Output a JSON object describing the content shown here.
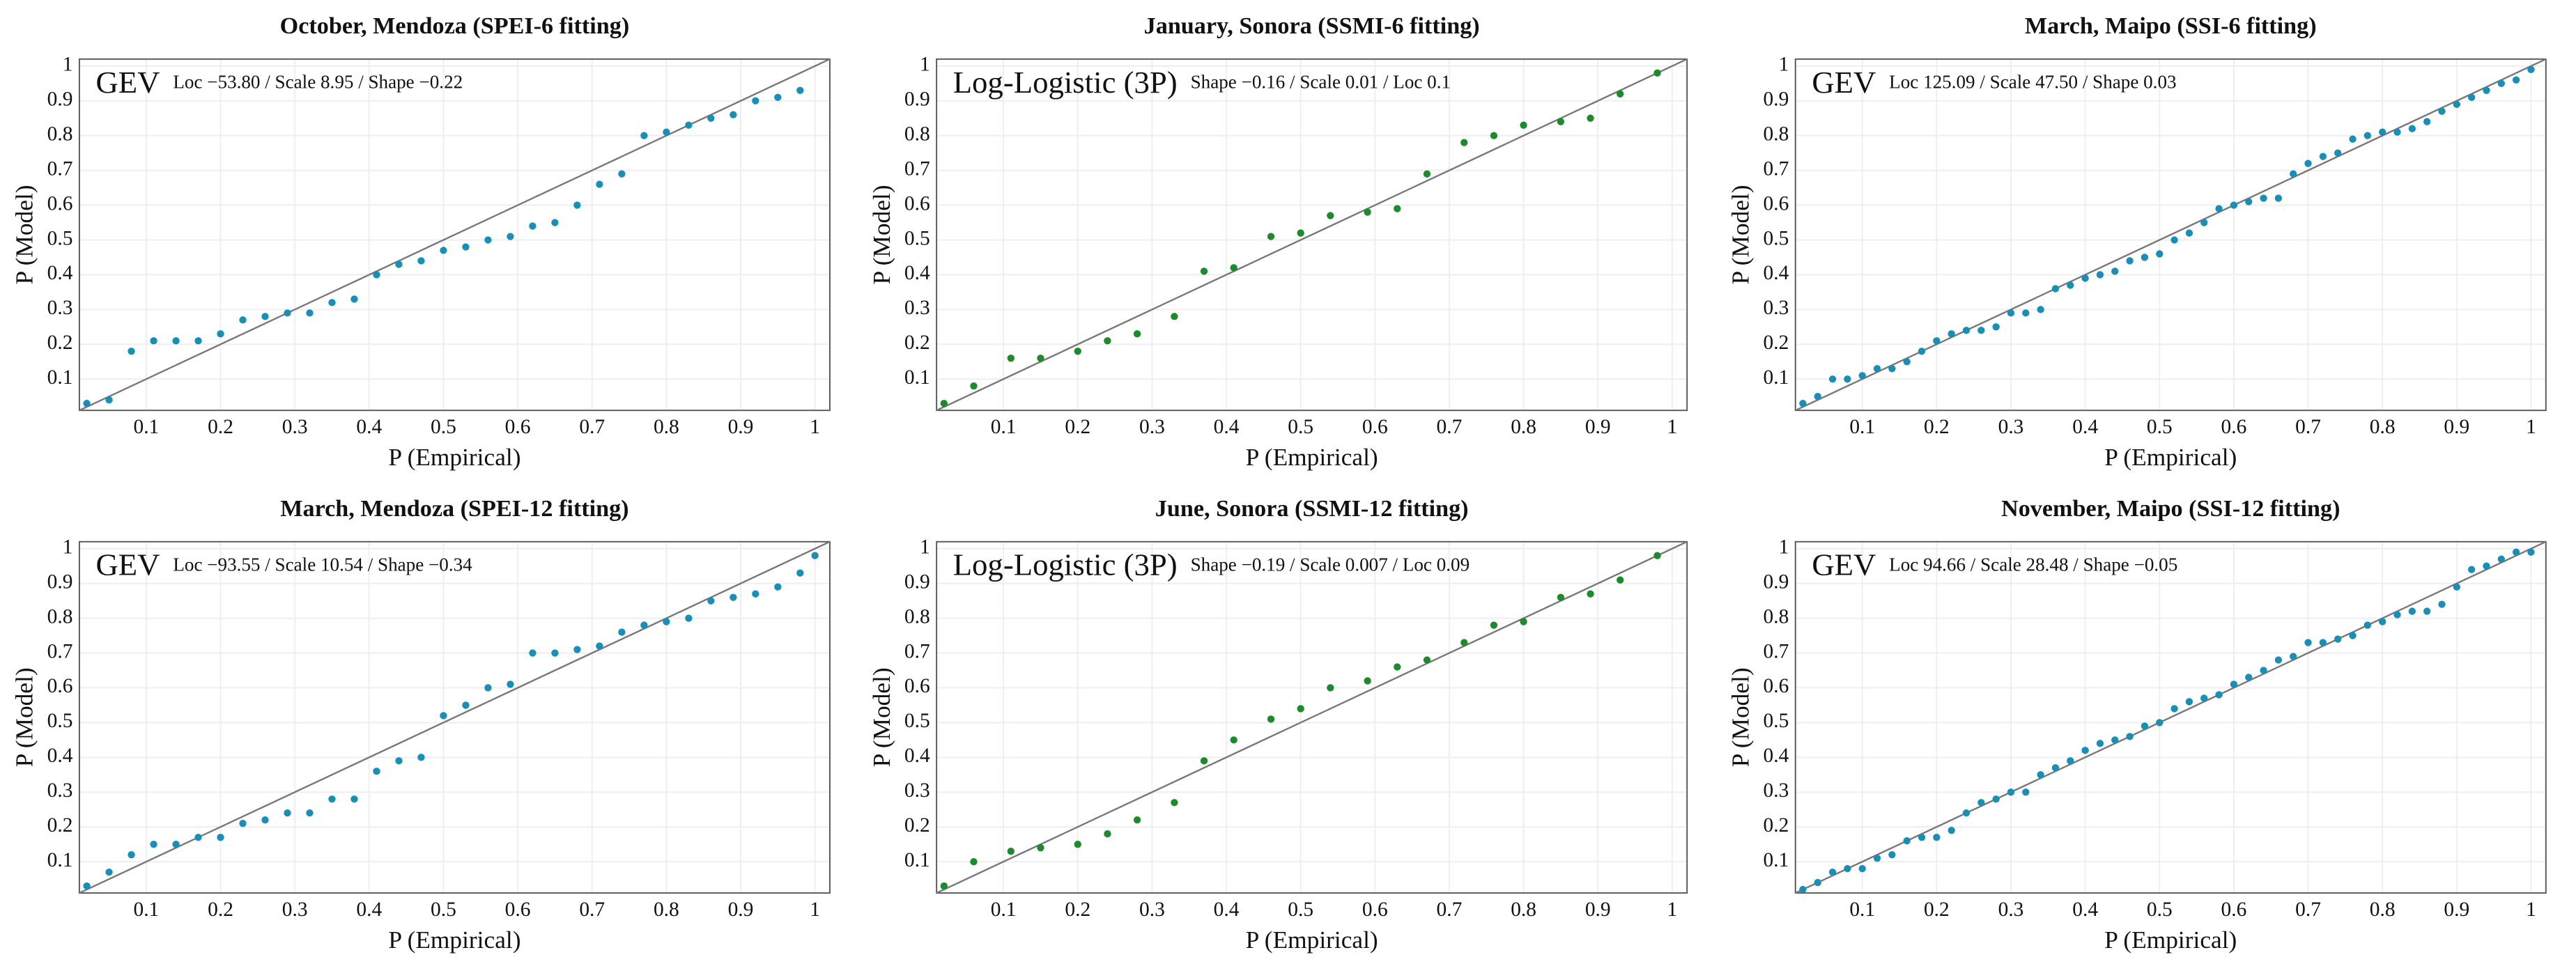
{
  "chart_data": [
    {
      "type": "scatter",
      "title": "October, Mendoza (SPEI-6 fitting)",
      "distribution": "GEV",
      "parameters": "Loc −53.80 / Scale 8.95 / Shape −0.22",
      "xlabel": "P (Empirical)",
      "ylabel": "P (Model)",
      "color": "#1a8fb5",
      "grid": true,
      "xlim": [
        0.01,
        1.02
      ],
      "ylim": [
        0.01,
        1.02
      ],
      "xticks": [
        0.1,
        0.2,
        0.3,
        0.4,
        0.5,
        0.6,
        0.7,
        0.8,
        0.9,
        1
      ],
      "yticks": [
        0.1,
        0.2,
        0.3,
        0.4,
        0.5,
        0.6,
        0.7,
        0.8,
        0.9,
        1
      ],
      "x": [
        0.02,
        0.05,
        0.08,
        0.11,
        0.14,
        0.17,
        0.2,
        0.23,
        0.26,
        0.29,
        0.32,
        0.35,
        0.38,
        0.41,
        0.44,
        0.47,
        0.5,
        0.53,
        0.56,
        0.59,
        0.62,
        0.65,
        0.68,
        0.71,
        0.74,
        0.77,
        0.8,
        0.83,
        0.86,
        0.89,
        0.92,
        0.95,
        0.98
      ],
      "values": [
        0.03,
        0.04,
        0.18,
        0.21,
        0.21,
        0.21,
        0.23,
        0.27,
        0.28,
        0.29,
        0.29,
        0.32,
        0.33,
        0.4,
        0.43,
        0.44,
        0.47,
        0.48,
        0.5,
        0.51,
        0.54,
        0.55,
        0.6,
        0.66,
        0.69,
        0.8,
        0.81,
        0.83,
        0.85,
        0.86,
        0.9,
        0.91,
        0.93
      ]
    },
    {
      "type": "scatter",
      "title": "January, Sonora (SSMI-6 fitting)",
      "distribution": "Log-Logistic (3P)",
      "parameters": "Shape −0.16 / Scale 0.01 / Loc 0.1",
      "xlabel": "P (Empirical)",
      "ylabel": "P (Model)",
      "color": "#1e8a2e",
      "grid": true,
      "xlim": [
        0.01,
        1.02
      ],
      "ylim": [
        0.01,
        1.02
      ],
      "xticks": [
        0.1,
        0.2,
        0.3,
        0.4,
        0.5,
        0.6,
        0.7,
        0.8,
        0.9,
        1
      ],
      "yticks": [
        0.1,
        0.2,
        0.3,
        0.4,
        0.5,
        0.6,
        0.7,
        0.8,
        0.9,
        1
      ],
      "x": [
        0.02,
        0.06,
        0.11,
        0.15,
        0.2,
        0.24,
        0.28,
        0.33,
        0.37,
        0.41,
        0.46,
        0.5,
        0.54,
        0.59,
        0.63,
        0.67,
        0.72,
        0.76,
        0.8,
        0.85,
        0.89,
        0.93,
        0.98
      ],
      "values": [
        0.03,
        0.08,
        0.16,
        0.16,
        0.18,
        0.21,
        0.23,
        0.28,
        0.41,
        0.42,
        0.51,
        0.52,
        0.57,
        0.58,
        0.59,
        0.69,
        0.78,
        0.8,
        0.83,
        0.84,
        0.85,
        0.92,
        0.98
      ]
    },
    {
      "type": "scatter",
      "title": "March, Maipo (SSI-6 fitting)",
      "distribution": "GEV",
      "parameters": "Loc 125.09 / Scale 47.50 / Shape 0.03",
      "xlabel": "P (Empirical)",
      "ylabel": "P (Model)",
      "color": "#1a8fb5",
      "grid": true,
      "xlim": [
        0.01,
        1.02
      ],
      "ylim": [
        0.01,
        1.02
      ],
      "xticks": [
        0.1,
        0.2,
        0.3,
        0.4,
        0.5,
        0.6,
        0.7,
        0.8,
        0.9,
        1
      ],
      "yticks": [
        0.1,
        0.2,
        0.3,
        0.4,
        0.5,
        0.6,
        0.7,
        0.8,
        0.9,
        1
      ],
      "x": [
        0.02,
        0.04,
        0.06,
        0.08,
        0.1,
        0.12,
        0.14,
        0.16,
        0.18,
        0.2,
        0.22,
        0.24,
        0.26,
        0.28,
        0.3,
        0.32,
        0.34,
        0.36,
        0.38,
        0.4,
        0.42,
        0.44,
        0.46,
        0.48,
        0.5,
        0.52,
        0.54,
        0.56,
        0.58,
        0.6,
        0.62,
        0.64,
        0.66,
        0.68,
        0.7,
        0.72,
        0.74,
        0.76,
        0.78,
        0.8,
        0.82,
        0.84,
        0.86,
        0.88,
        0.9,
        0.92,
        0.94,
        0.96,
        0.98,
        1
      ],
      "values": [
        0.03,
        0.05,
        0.1,
        0.1,
        0.11,
        0.13,
        0.13,
        0.15,
        0.18,
        0.21,
        0.23,
        0.24,
        0.24,
        0.25,
        0.29,
        0.29,
        0.3,
        0.36,
        0.37,
        0.39,
        0.4,
        0.41,
        0.44,
        0.45,
        0.46,
        0.5,
        0.52,
        0.55,
        0.59,
        0.6,
        0.61,
        0.62,
        0.62,
        0.69,
        0.72,
        0.74,
        0.75,
        0.79,
        0.8,
        0.81,
        0.81,
        0.82,
        0.84,
        0.87,
        0.89,
        0.91,
        0.93,
        0.95,
        0.96,
        0.99
      ]
    },
    {
      "type": "scatter",
      "title": "March, Mendoza (SPEI-12 fitting)",
      "distribution": "GEV",
      "parameters": "Loc −93.55 / Scale 10.54 / Shape −0.34",
      "xlabel": "P (Empirical)",
      "ylabel": "P (Model)",
      "color": "#1a8fb5",
      "grid": true,
      "xlim": [
        0.01,
        1.02
      ],
      "ylim": [
        0.01,
        1.02
      ],
      "xticks": [
        0.1,
        0.2,
        0.3,
        0.4,
        0.5,
        0.6,
        0.7,
        0.8,
        0.9,
        1
      ],
      "yticks": [
        0.1,
        0.2,
        0.3,
        0.4,
        0.5,
        0.6,
        0.7,
        0.8,
        0.9,
        1
      ],
      "x": [
        0.02,
        0.05,
        0.08,
        0.11,
        0.14,
        0.17,
        0.2,
        0.23,
        0.26,
        0.29,
        0.32,
        0.35,
        0.38,
        0.41,
        0.44,
        0.47,
        0.5,
        0.53,
        0.56,
        0.59,
        0.62,
        0.65,
        0.68,
        0.71,
        0.74,
        0.77,
        0.8,
        0.83,
        0.86,
        0.89,
        0.92,
        0.95,
        0.98,
        1
      ],
      "values": [
        0.03,
        0.07,
        0.12,
        0.15,
        0.15,
        0.17,
        0.17,
        0.21,
        0.22,
        0.24,
        0.24,
        0.28,
        0.28,
        0.36,
        0.39,
        0.4,
        0.52,
        0.55,
        0.6,
        0.61,
        0.7,
        0.7,
        0.71,
        0.72,
        0.76,
        0.78,
        0.79,
        0.8,
        0.85,
        0.86,
        0.87,
        0.89,
        0.93,
        0.98
      ]
    },
    {
      "type": "scatter",
      "title": "June, Sonora (SSMI-12 fitting)",
      "distribution": "Log-Logistic (3P)",
      "parameters": "Shape −0.19 / Scale 0.007 / Loc 0.09",
      "xlabel": "P (Empirical)",
      "ylabel": "P (Model)",
      "color": "#1e8a2e",
      "grid": true,
      "xlim": [
        0.01,
        1.02
      ],
      "ylim": [
        0.01,
        1.02
      ],
      "xticks": [
        0.1,
        0.2,
        0.3,
        0.4,
        0.5,
        0.6,
        0.7,
        0.8,
        0.9,
        1
      ],
      "yticks": [
        0.1,
        0.2,
        0.3,
        0.4,
        0.5,
        0.6,
        0.7,
        0.8,
        0.9,
        1
      ],
      "x": [
        0.02,
        0.06,
        0.11,
        0.15,
        0.2,
        0.24,
        0.28,
        0.33,
        0.37,
        0.41,
        0.46,
        0.5,
        0.54,
        0.59,
        0.63,
        0.67,
        0.72,
        0.76,
        0.8,
        0.85,
        0.89,
        0.93,
        0.98
      ],
      "values": [
        0.03,
        0.1,
        0.13,
        0.14,
        0.15,
        0.18,
        0.22,
        0.27,
        0.39,
        0.45,
        0.51,
        0.54,
        0.6,
        0.62,
        0.66,
        0.68,
        0.73,
        0.78,
        0.79,
        0.86,
        0.87,
        0.91,
        0.98
      ]
    },
    {
      "type": "scatter",
      "title": "November, Maipo (SSI-12 fitting)",
      "distribution": "GEV",
      "parameters": "Loc 94.66 / Scale 28.48 / Shape −0.05",
      "xlabel": "P (Empirical)",
      "ylabel": "P (Model)",
      "color": "#1a8fb5",
      "grid": true,
      "xlim": [
        0.01,
        1.02
      ],
      "ylim": [
        0.01,
        1.02
      ],
      "xticks": [
        0.1,
        0.2,
        0.3,
        0.4,
        0.5,
        0.6,
        0.7,
        0.8,
        0.9,
        1
      ],
      "yticks": [
        0.1,
        0.2,
        0.3,
        0.4,
        0.5,
        0.6,
        0.7,
        0.8,
        0.9,
        1
      ],
      "x": [
        0.02,
        0.04,
        0.06,
        0.08,
        0.1,
        0.12,
        0.14,
        0.16,
        0.18,
        0.2,
        0.22,
        0.24,
        0.26,
        0.28,
        0.3,
        0.32,
        0.34,
        0.36,
        0.38,
        0.4,
        0.42,
        0.44,
        0.46,
        0.48,
        0.5,
        0.52,
        0.54,
        0.56,
        0.58,
        0.6,
        0.62,
        0.64,
        0.66,
        0.68,
        0.7,
        0.72,
        0.74,
        0.76,
        0.78,
        0.8,
        0.82,
        0.84,
        0.86,
        0.88,
        0.9,
        0.92,
        0.94,
        0.96,
        0.98,
        1
      ],
      "values": [
        0.02,
        0.04,
        0.07,
        0.08,
        0.08,
        0.11,
        0.12,
        0.16,
        0.17,
        0.17,
        0.19,
        0.24,
        0.27,
        0.28,
        0.3,
        0.3,
        0.35,
        0.37,
        0.39,
        0.42,
        0.44,
        0.45,
        0.46,
        0.49,
        0.5,
        0.54,
        0.56,
        0.57,
        0.58,
        0.61,
        0.63,
        0.65,
        0.68,
        0.69,
        0.73,
        0.73,
        0.74,
        0.75,
        0.78,
        0.79,
        0.81,
        0.82,
        0.82,
        0.84,
        0.89,
        0.94,
        0.95,
        0.97,
        0.99,
        0.99
      ]
    }
  ]
}
